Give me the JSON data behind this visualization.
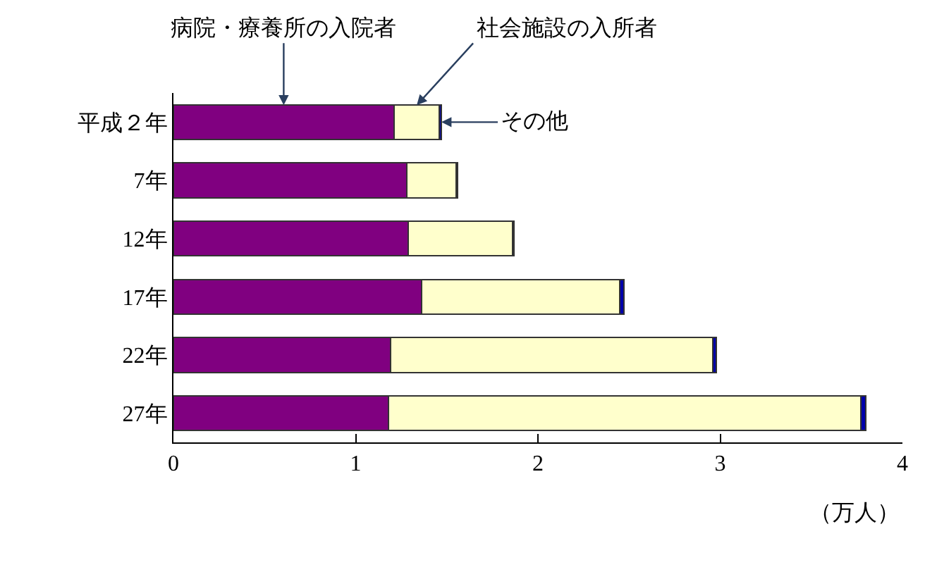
{
  "chart_data": {
    "type": "bar",
    "orientation": "horizontal",
    "stacked": true,
    "categories": [
      "平成２年",
      "7年",
      "12年",
      "17年",
      "22年",
      "27年"
    ],
    "series": [
      {
        "name": "病院・療養所の入院者",
        "color": "#800080",
        "values": [
          1.21,
          1.28,
          1.29,
          1.36,
          1.19,
          1.18
        ]
      },
      {
        "name": "社会施設の入所者",
        "color": "#ffffcc",
        "values": [
          0.25,
          0.27,
          0.57,
          1.09,
          1.77,
          2.59
        ]
      },
      {
        "name": "その他",
        "color": "#0000aa",
        "values": [
          0.01,
          0.01,
          0.01,
          0.02,
          0.02,
          0.03
        ]
      }
    ],
    "xlim": [
      0,
      4
    ],
    "xticks": [
      0,
      1,
      2,
      3,
      4
    ],
    "xlabel": "（万人）",
    "legend": false
  }
}
